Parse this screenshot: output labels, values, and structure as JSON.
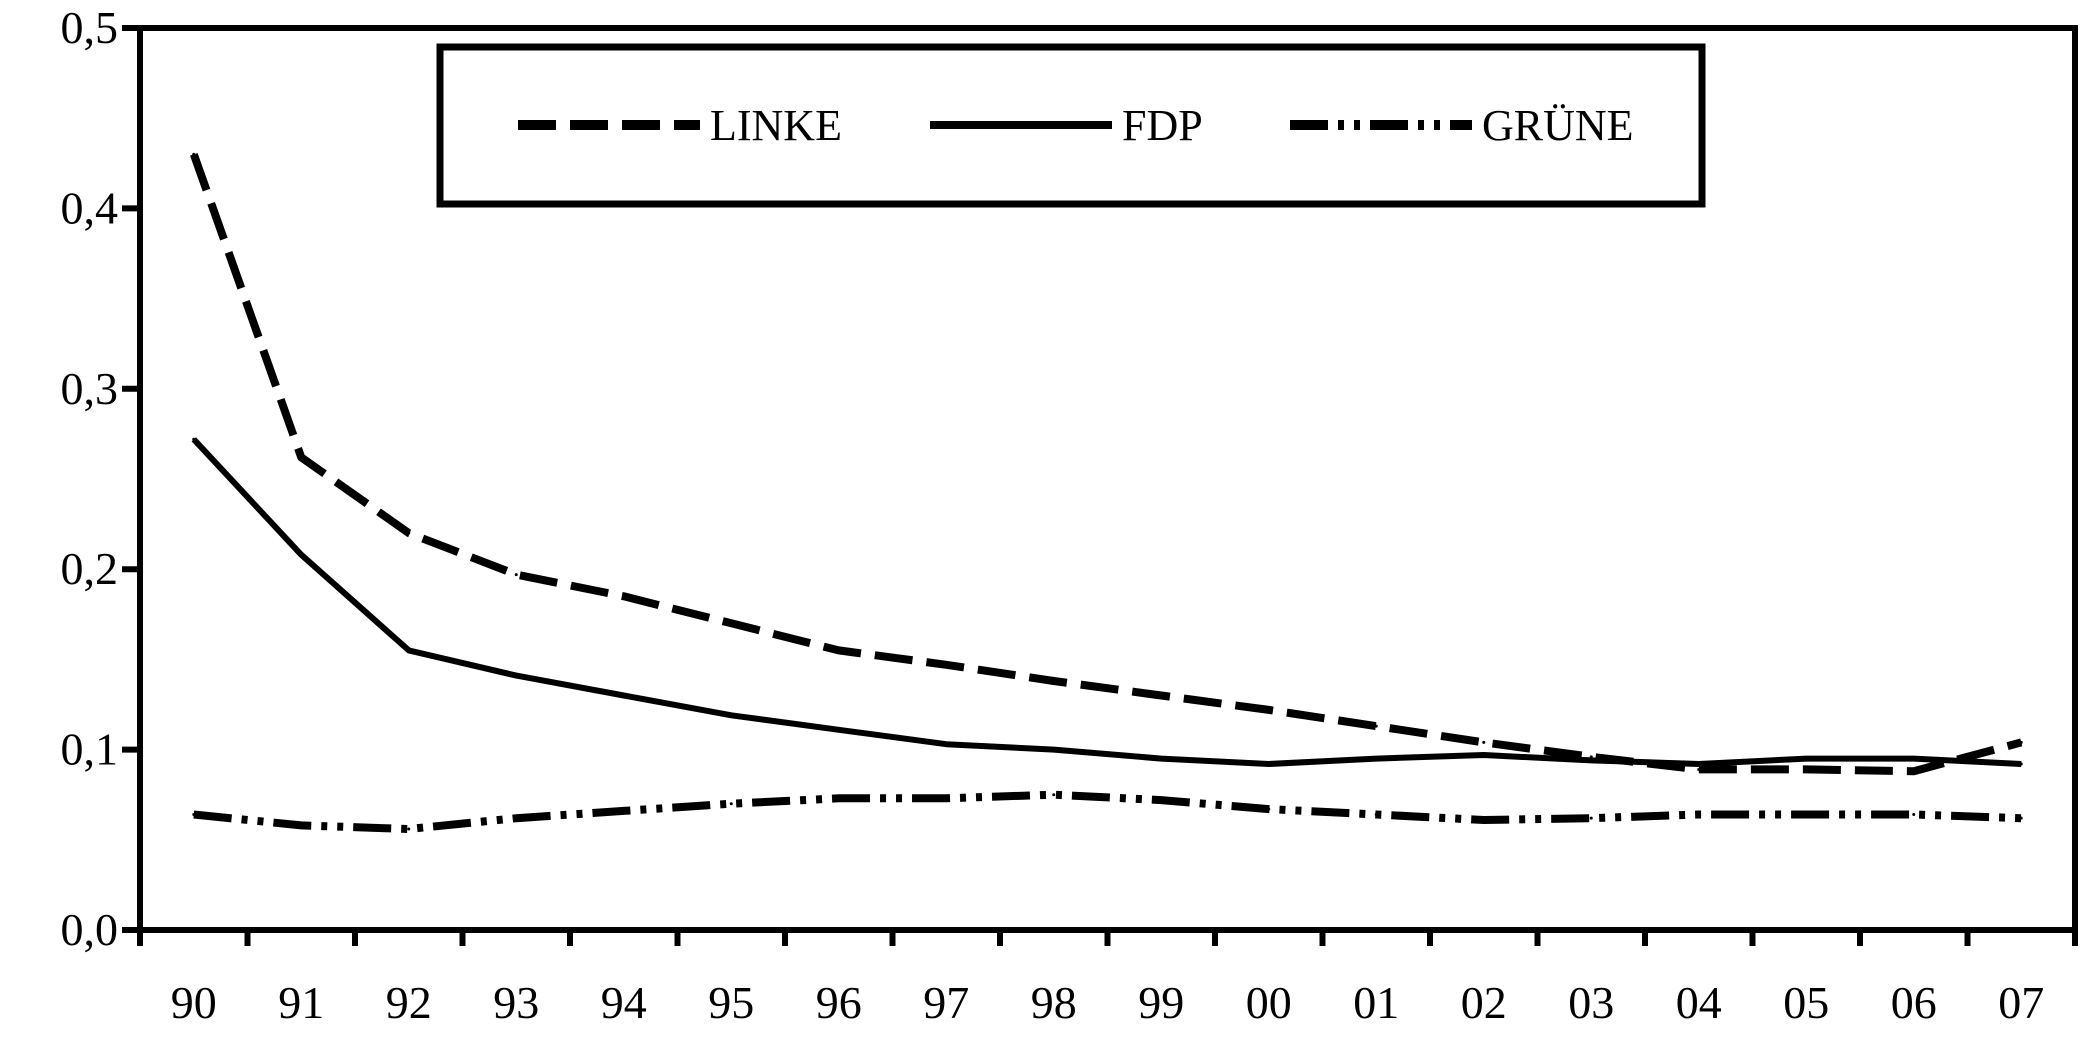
{
  "chart_data": {
    "type": "line",
    "title": "",
    "xlabel": "",
    "ylabel": "",
    "categories": [
      "90",
      "91",
      "92",
      "93",
      "94",
      "95",
      "96",
      "97",
      "98",
      "99",
      "00",
      "01",
      "02",
      "03",
      "04",
      "05",
      "06",
      "07"
    ],
    "ylim": [
      0,
      0.5
    ],
    "yticks": [
      "0,0",
      "0,1",
      "0,2",
      "0,3",
      "0,4",
      "0,5"
    ],
    "grid": false,
    "legend_position": "top-center",
    "series": [
      {
        "name": "LINKE",
        "style": "dashed",
        "values": [
          0.43,
          0.262,
          0.22,
          0.197,
          0.185,
          0.17,
          0.155,
          0.147,
          0.138,
          0.13,
          0.122,
          0.113,
          0.104,
          0.096,
          0.089,
          0.089,
          0.088,
          0.104
        ]
      },
      {
        "name": "FDP",
        "style": "solid",
        "values": [
          0.272,
          0.208,
          0.155,
          0.141,
          0.13,
          0.119,
          0.111,
          0.103,
          0.1,
          0.095,
          0.092,
          0.095,
          0.097,
          0.094,
          0.092,
          0.095,
          0.095,
          0.092
        ]
      },
      {
        "name": "GRÜNE",
        "style": "dash-dot-dot",
        "values": [
          0.064,
          0.058,
          0.056,
          0.062,
          0.066,
          0.07,
          0.073,
          0.073,
          0.075,
          0.072,
          0.067,
          0.064,
          0.061,
          0.062,
          0.064,
          0.064,
          0.064,
          0.062
        ]
      }
    ],
    "colors": {
      "line": "#000000",
      "background": "#ffffff"
    }
  }
}
